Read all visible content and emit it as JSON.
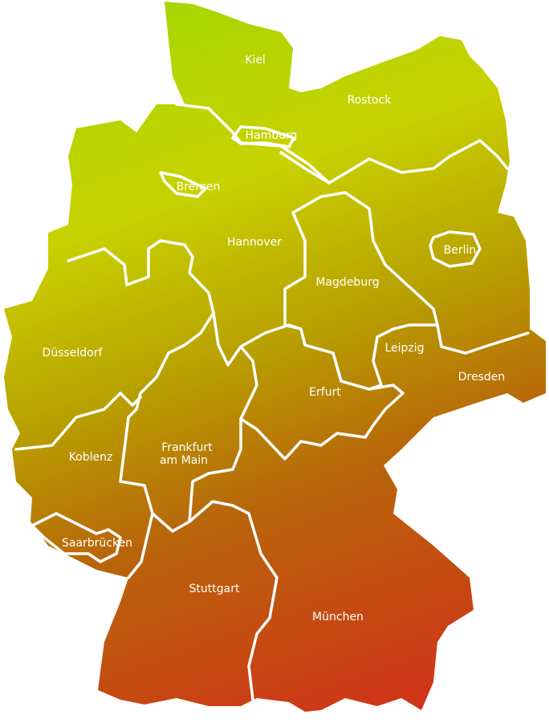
{
  "map": {
    "colors": {
      "gradient_top": "#a6d600",
      "gradient_upper_mid": "#c8d200",
      "gradient_mid": "#b8a000",
      "gradient_lower_mid": "#b8660a",
      "gradient_bottom": "#d2301a",
      "border": "#ffffff",
      "label": "#ffffff"
    },
    "cities": {
      "kiel": "Kiel",
      "rostock": "Rostock",
      "hamburg": "Hamburg",
      "bremen": "Bremen",
      "hannover": "Hannover",
      "berlin": "Berlin",
      "magdeburg": "Magdeburg",
      "duesseldorf": "Düsseldorf",
      "leipzig": "Leipzig",
      "dresden": "Dresden",
      "erfurt": "Erfurt",
      "koblenz": "Koblenz",
      "frankfurt_line1": "Frankfurt",
      "frankfurt_line2": "am Main",
      "saarbruecken": "Saarbrücken",
      "stuttgart": "Stuttgart",
      "muenchen": "München"
    }
  }
}
